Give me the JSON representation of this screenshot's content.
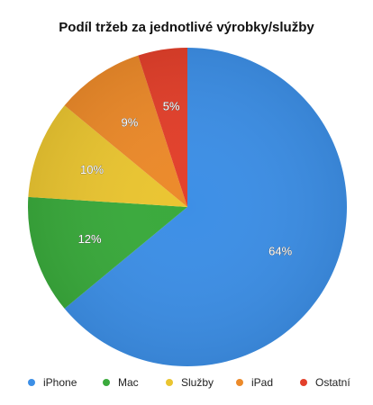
{
  "chart_data": {
    "type": "pie",
    "title": "Podíl tržeb za jednotlivé výrobky/služby",
    "slices": [
      {
        "label": "iPhone",
        "value": 64,
        "display": "64%",
        "color": "#3d8fe6"
      },
      {
        "label": "Mac",
        "value": 12,
        "display": "12%",
        "color": "#3aaa3c"
      },
      {
        "label": "Služby",
        "value": 10,
        "display": "10%",
        "color": "#eac531"
      },
      {
        "label": "iPad",
        "value": 9,
        "display": "9%",
        "color": "#ec8a2a"
      },
      {
        "label": "Ostatní",
        "value": 5,
        "display": "5%",
        "color": "#e3402b"
      }
    ],
    "legend_position": "bottom"
  }
}
